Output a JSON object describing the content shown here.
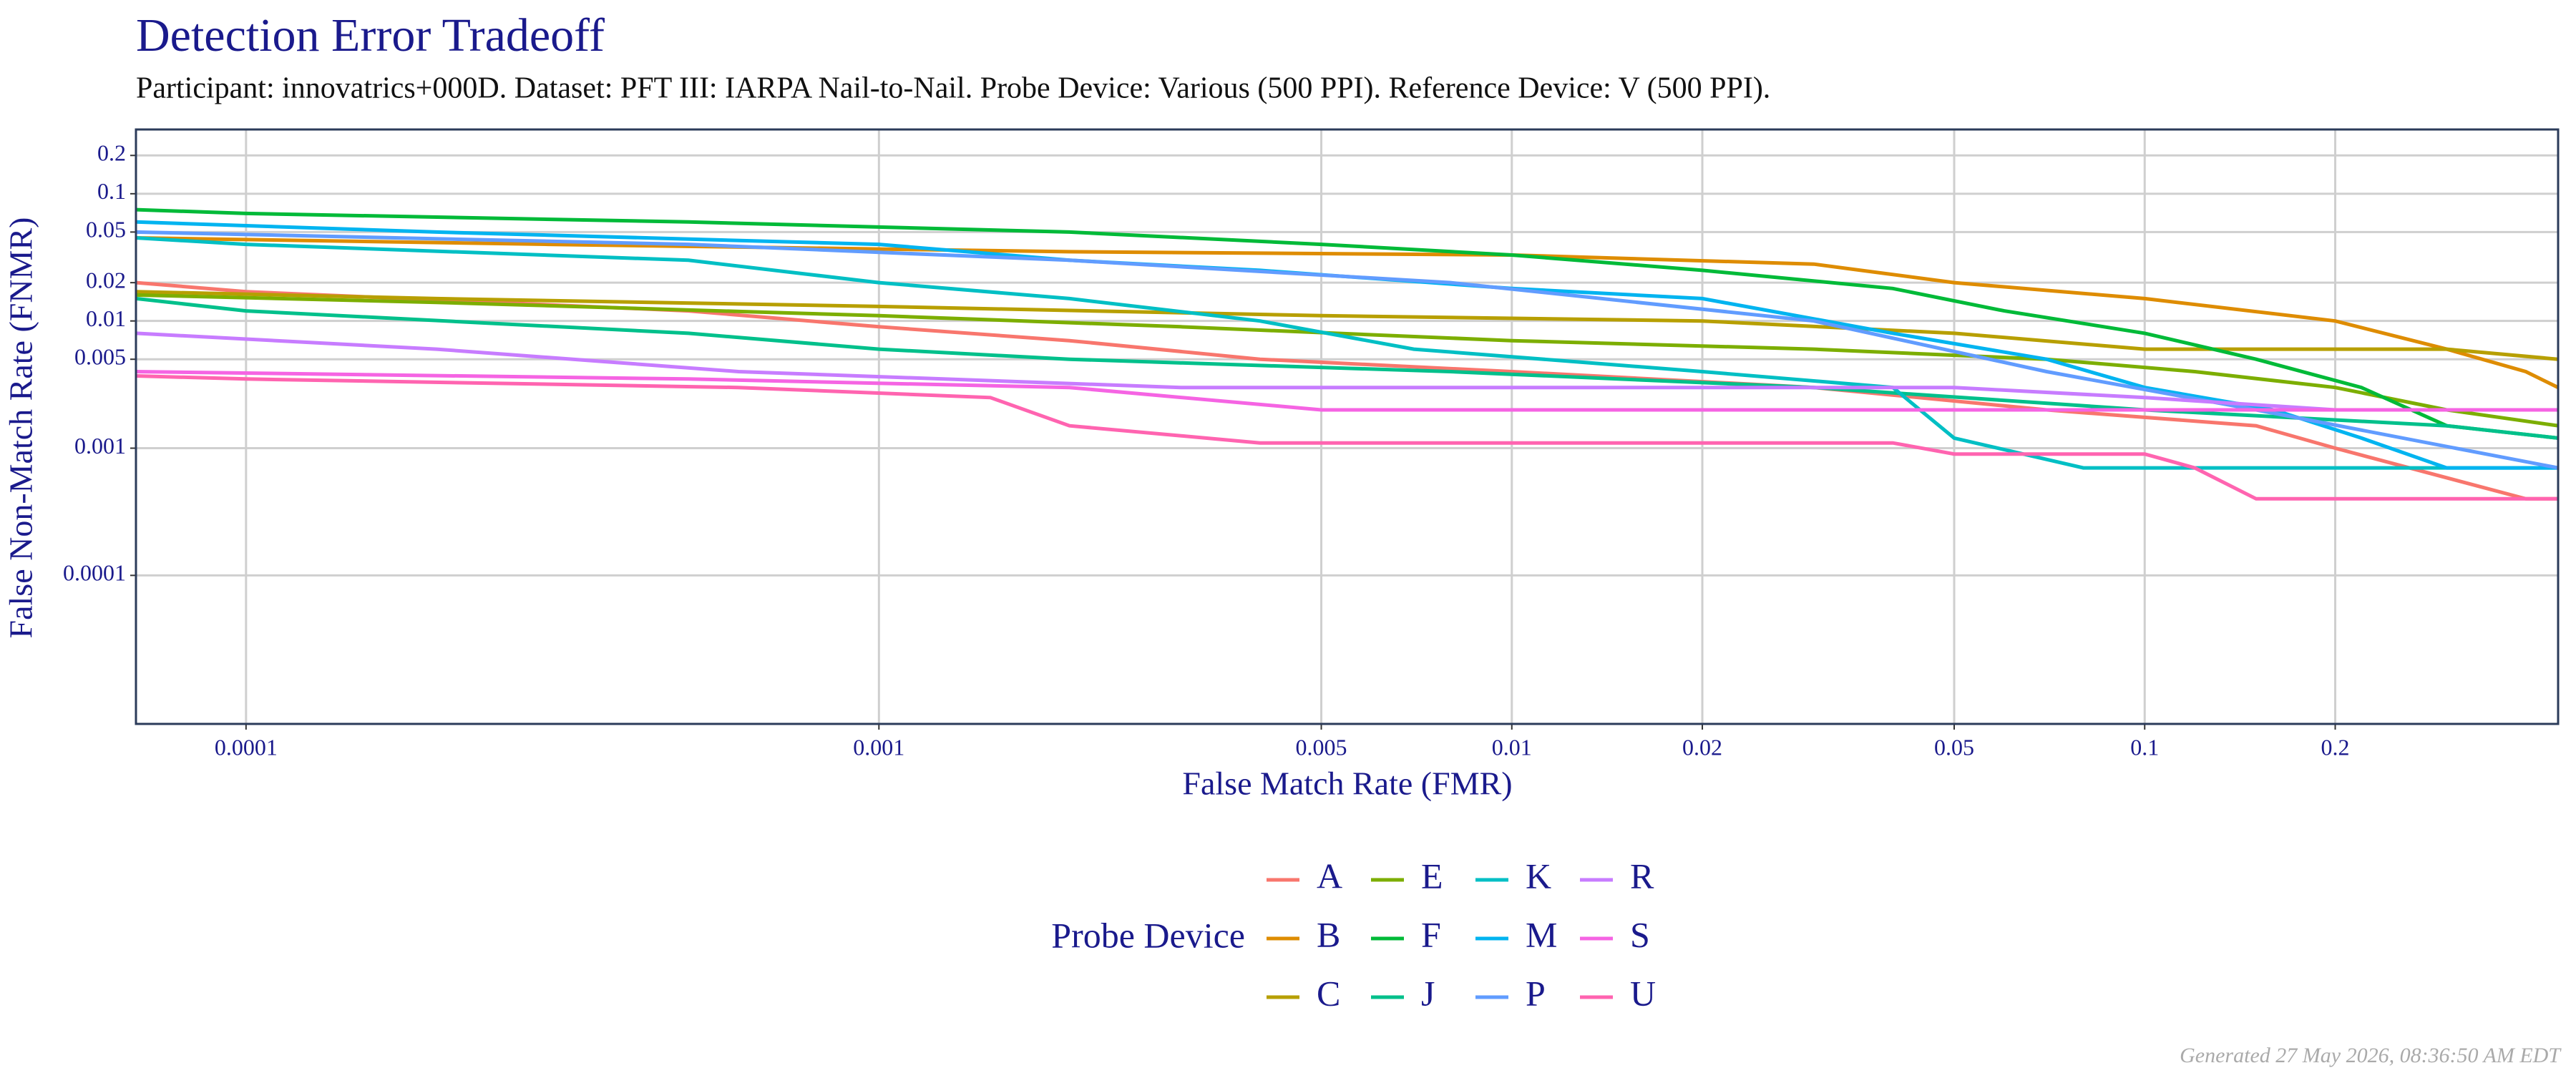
{
  "chart_data": {
    "type": "line",
    "title": "Detection Error Tradeoff",
    "subtitle": "Participant: innovatrics+000D. Dataset: PFT III: IARPA Nail-to-Nail. Probe Device: Various (500 PPI). Reference Device: V (500 PPI).",
    "x_label": "False Match Rate (FMR)",
    "y_label": "False Non-Match Rate (FNMR)",
    "legend_title": "Probe Device",
    "caption": "Generated 27 May 2026, 08:36:50 AM EDT",
    "xlog": true,
    "ylog": true,
    "grid": true,
    "xlim": [
      6.7e-05,
      0.45
    ],
    "ylim": [
      6.8e-06,
      0.32
    ],
    "xticks": [
      0.0001,
      0.001,
      0.005,
      0.01,
      0.02,
      0.05,
      0.1,
      0.2
    ],
    "yticks": [
      0.0001,
      0.001,
      0.005,
      0.01,
      0.02,
      0.05,
      0.1,
      0.2
    ],
    "series": [
      {
        "name": "A",
        "color": "#F8766D",
        "x": [
          6.7e-05,
          0.0001,
          0.0005,
          0.001,
          0.002,
          0.004,
          0.01,
          0.03,
          0.07,
          0.15,
          0.2,
          0.4,
          0.45
        ],
        "values": [
          0.02,
          0.017,
          0.012,
          0.009,
          0.007,
          0.005,
          0.004,
          0.003,
          0.002,
          0.0015,
          0.001,
          0.0004,
          0.0004
        ]
      },
      {
        "name": "B",
        "color": "#DE8C00",
        "x": [
          6.7e-05,
          0.0003,
          0.002,
          0.01,
          0.03,
          0.05,
          0.1,
          0.2,
          0.3,
          0.4,
          0.45
        ],
        "values": [
          0.045,
          0.04,
          0.035,
          0.033,
          0.028,
          0.02,
          0.015,
          0.01,
          0.006,
          0.004,
          0.003
        ]
      },
      {
        "name": "C",
        "color": "#B79F00",
        "x": [
          6.7e-05,
          0.0002,
          0.001,
          0.005,
          0.02,
          0.05,
          0.1,
          0.3,
          0.45
        ],
        "values": [
          0.017,
          0.015,
          0.013,
          0.011,
          0.01,
          0.008,
          0.006,
          0.006,
          0.005
        ]
      },
      {
        "name": "E",
        "color": "#7CAE00",
        "x": [
          6.7e-05,
          0.0002,
          0.001,
          0.003,
          0.01,
          0.03,
          0.07,
          0.12,
          0.2,
          0.3,
          0.45
        ],
        "values": [
          0.016,
          0.014,
          0.011,
          0.009,
          0.007,
          0.006,
          0.005,
          0.004,
          0.003,
          0.002,
          0.0015
        ]
      },
      {
        "name": "F",
        "color": "#00BA38",
        "x": [
          6.7e-05,
          0.0001,
          0.0005,
          0.002,
          0.005,
          0.01,
          0.02,
          0.04,
          0.06,
          0.1,
          0.15,
          0.22,
          0.3,
          0.45
        ],
        "values": [
          0.075,
          0.07,
          0.06,
          0.05,
          0.04,
          0.033,
          0.025,
          0.018,
          0.012,
          0.008,
          0.005,
          0.003,
          0.0015,
          0.0012
        ]
      },
      {
        "name": "J",
        "color": "#00C08B",
        "x": [
          6.7e-05,
          0.0001,
          0.0005,
          0.001,
          0.002,
          0.008,
          0.03,
          0.1,
          0.3,
          0.45
        ],
        "values": [
          0.015,
          0.012,
          0.008,
          0.006,
          0.005,
          0.004,
          0.003,
          0.002,
          0.0015,
          0.0012
        ]
      },
      {
        "name": "K",
        "color": "#00BFC4",
        "x": [
          6.7e-05,
          0.0001,
          0.0005,
          0.001,
          0.002,
          0.004,
          0.007,
          0.02,
          0.04,
          0.05,
          0.08,
          0.45
        ],
        "values": [
          0.045,
          0.04,
          0.03,
          0.02,
          0.015,
          0.01,
          0.006,
          0.004,
          0.003,
          0.0012,
          0.0007,
          0.0007
        ]
      },
      {
        "name": "M",
        "color": "#00B4F0",
        "x": [
          6.7e-05,
          0.0002,
          0.001,
          0.002,
          0.004,
          0.01,
          0.02,
          0.04,
          0.07,
          0.1,
          0.16,
          0.22,
          0.3,
          0.45
        ],
        "values": [
          0.06,
          0.05,
          0.04,
          0.03,
          0.025,
          0.018,
          0.015,
          0.008,
          0.005,
          0.003,
          0.002,
          0.0012,
          0.0007,
          0.0007
        ]
      },
      {
        "name": "P",
        "color": "#619CFF",
        "x": [
          6.7e-05,
          0.0005,
          0.002,
          0.008,
          0.03,
          0.07,
          0.15,
          0.45
        ],
        "values": [
          0.05,
          0.04,
          0.03,
          0.02,
          0.01,
          0.004,
          0.002,
          0.0007
        ]
      },
      {
        "name": "R",
        "color": "#C77CFF",
        "x": [
          6.7e-05,
          0.0002,
          0.0006,
          0.003,
          0.05,
          0.1,
          0.2,
          0.45
        ],
        "values": [
          0.008,
          0.006,
          0.004,
          0.003,
          0.003,
          0.0025,
          0.002,
          0.002
        ]
      },
      {
        "name": "S",
        "color": "#F564E3",
        "x": [
          6.7e-05,
          0.0005,
          0.002,
          0.005,
          0.1,
          0.45
        ],
        "values": [
          0.004,
          0.0035,
          0.003,
          0.002,
          0.002,
          0.002
        ]
      },
      {
        "name": "U",
        "color": "#FF64B0",
        "x": [
          6.7e-05,
          0.0001,
          0.0006,
          0.0015,
          0.002,
          0.004,
          0.04,
          0.05,
          0.1,
          0.12,
          0.15,
          0.45
        ],
        "values": [
          0.0037,
          0.0035,
          0.003,
          0.0025,
          0.0015,
          0.0011,
          0.0011,
          0.0009,
          0.0009,
          0.0007,
          0.0004,
          0.0004
        ]
      }
    ]
  }
}
